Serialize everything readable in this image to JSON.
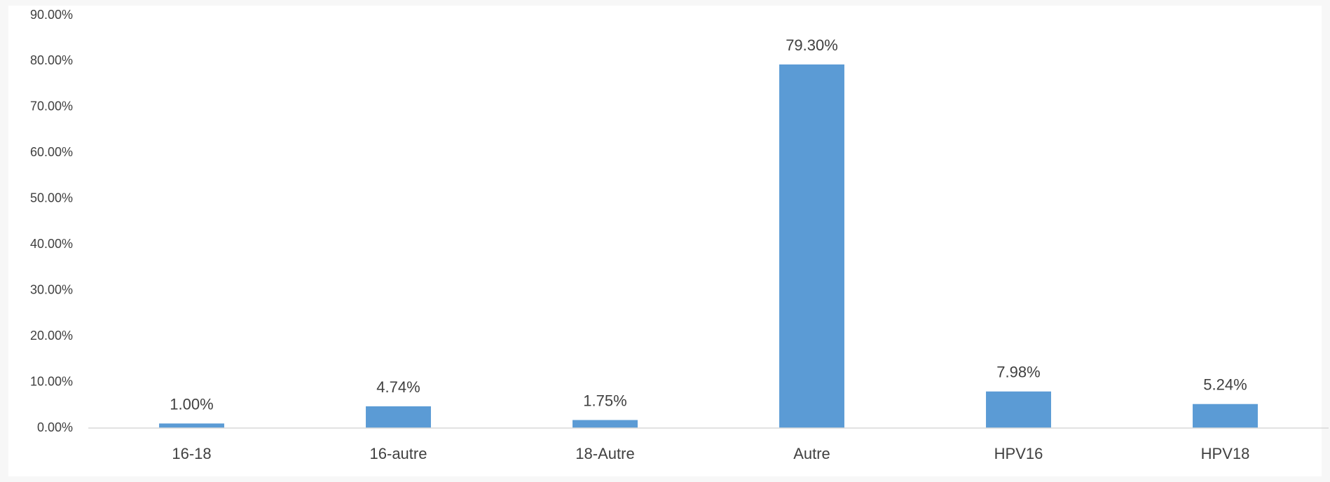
{
  "chart_data": {
    "type": "bar",
    "categories": [
      "16-18",
      "16-autre",
      "18-Autre",
      "Autre",
      "HPV16",
      "HPV18"
    ],
    "values": [
      1.0,
      4.74,
      1.75,
      79.3,
      7.98,
      5.24
    ],
    "value_labels": [
      "1.00%",
      "4.74%",
      "1.75%",
      "79.30%",
      "7.98%",
      "5.24%"
    ],
    "color": "#5b9bd5",
    "ylim": [
      0,
      90
    ],
    "yticks": [
      {
        "value": 0,
        "label": "0.00%"
      },
      {
        "value": 10,
        "label": "10.00%"
      },
      {
        "value": 20,
        "label": "20.00%"
      },
      {
        "value": 30,
        "label": "30.00%"
      },
      {
        "value": 40,
        "label": "40.00%"
      },
      {
        "value": 50,
        "label": "50.00%"
      },
      {
        "value": 60,
        "label": "60.00%"
      },
      {
        "value": 70,
        "label": "70.00%"
      },
      {
        "value": 80,
        "label": "80.00%"
      },
      {
        "value": 90,
        "label": "90.00%"
      }
    ],
    "grid": false
  }
}
